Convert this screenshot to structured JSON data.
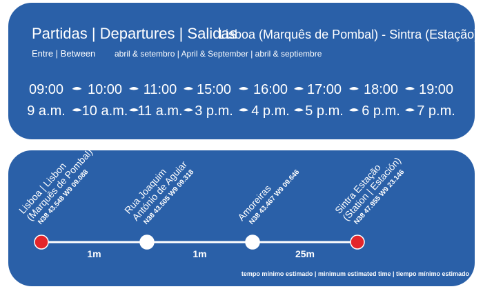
{
  "header": {
    "title": "Partidas | Departures | Salidas",
    "route": "Lisboa (Marquês de Pombal) - Sintra (Estação)",
    "period_label": "Entre | Between",
    "period": "abril & setembro | April & September | abril & septiembre"
  },
  "departures": [
    {
      "time24": "09:00",
      "time12": "9 a.m."
    },
    {
      "time24": "10:00",
      "time12": "10 a.m."
    },
    {
      "time24": "11:00",
      "time12": "11 a.m."
    },
    {
      "time24": "15:00",
      "time12": "3 p.m."
    },
    {
      "time24": "16:00",
      "time12": "4 p.m."
    },
    {
      "time24": "17:00",
      "time12": "5 p.m."
    },
    {
      "time24": "18:00",
      "time12": "6 p.m."
    },
    {
      "time24": "19:00",
      "time12": "7 p.m."
    }
  ],
  "stops": [
    {
      "lines": [
        "Lisboa | Lisbon",
        "(Marquês de Pombal)"
      ],
      "coords": "N38 43.548 W9 09.088",
      "color": "#e3262b"
    },
    {
      "lines": [
        "Rua Joaquim",
        "António de Aguiar"
      ],
      "coords": "N38 43.505 W9 09.318",
      "color": "#ffffff"
    },
    {
      "lines": [
        "Amoreiras"
      ],
      "coords": "N38 43.467 W9 09.646",
      "color": "#ffffff"
    },
    {
      "lines": [
        "Sintra Estação",
        "(Station | Estación)"
      ],
      "coords": "N38 47.955 W9 23.146",
      "color": "#e3262b"
    }
  ],
  "segments": [
    "1m",
    "1m",
    "25m"
  ],
  "footer": "tempo mínimo estimado | minimum estimated time | tiempo mínimo estimado"
}
